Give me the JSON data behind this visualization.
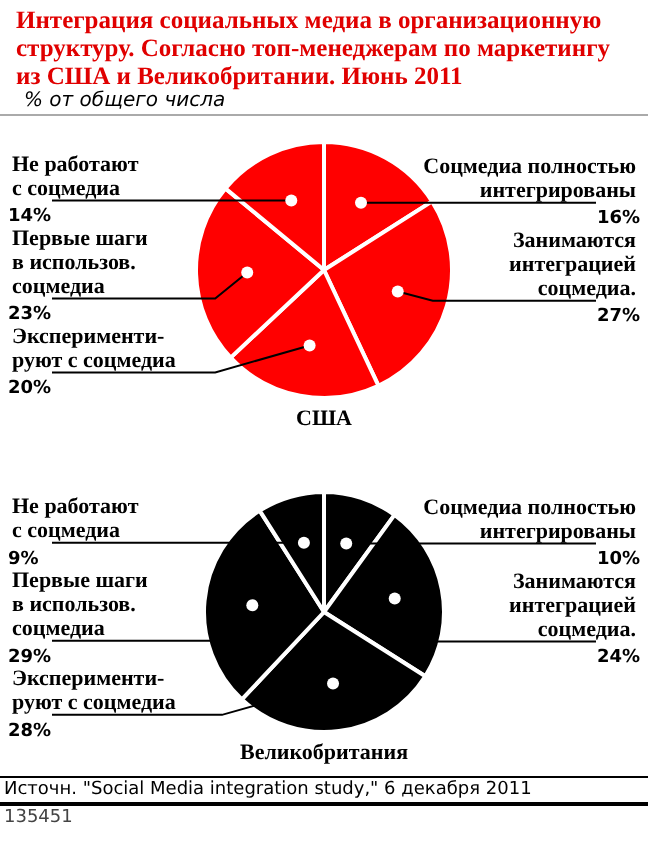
{
  "chart_data": [
    {
      "type": "pie",
      "title": "Интеграция социальных медиа в организационную структуру. Согласно топ-менеджерам по маркетингу из США и Великобритании.      Июнь 2011",
      "subtitle": "% от общего числа",
      "xlabel": "США",
      "categories": [
        "Соцмедиа полностью\nинтегрированы",
        "Занимаются\nинтеграцией\nсоцмедиа.",
        "Эксперименти-\nруют с соцмедиа",
        "Первые шаги\nв использов.\nсоцмедиа",
        "Не работают\nс соцмедиа"
      ],
      "values": [
        16,
        27,
        20,
        23,
        14
      ],
      "value_labels": [
        "16%",
        "27%",
        "20%",
        "23%",
        "14%"
      ],
      "colors": [
        "#ff0000",
        "#ff0000",
        "#ff0000",
        "#ff0000",
        "#ff0000"
      ]
    },
    {
      "type": "pie",
      "xlabel": "Великобритания",
      "categories": [
        "Соцмедиа полностью\nинтегрированы",
        "Занимаются\nинтеграцией\nсоцмедиа.",
        "Эксперименти-\nруют с соцмедиа",
        "Первые шаги\nв использов.\nсоцмедиа",
        "Не работают\nс соцмедиа"
      ],
      "values": [
        10,
        24,
        28,
        29,
        9
      ],
      "value_labels": [
        "10%",
        "24%",
        "28%",
        "29%",
        "9%"
      ],
      "colors": [
        "#000000",
        "#000000",
        "#000000",
        "#000000",
        "#000000"
      ],
      "annotations": [
        "Источн. \"Social Media integration study,\" 6 декабря 2011",
        "135451"
      ]
    }
  ]
}
